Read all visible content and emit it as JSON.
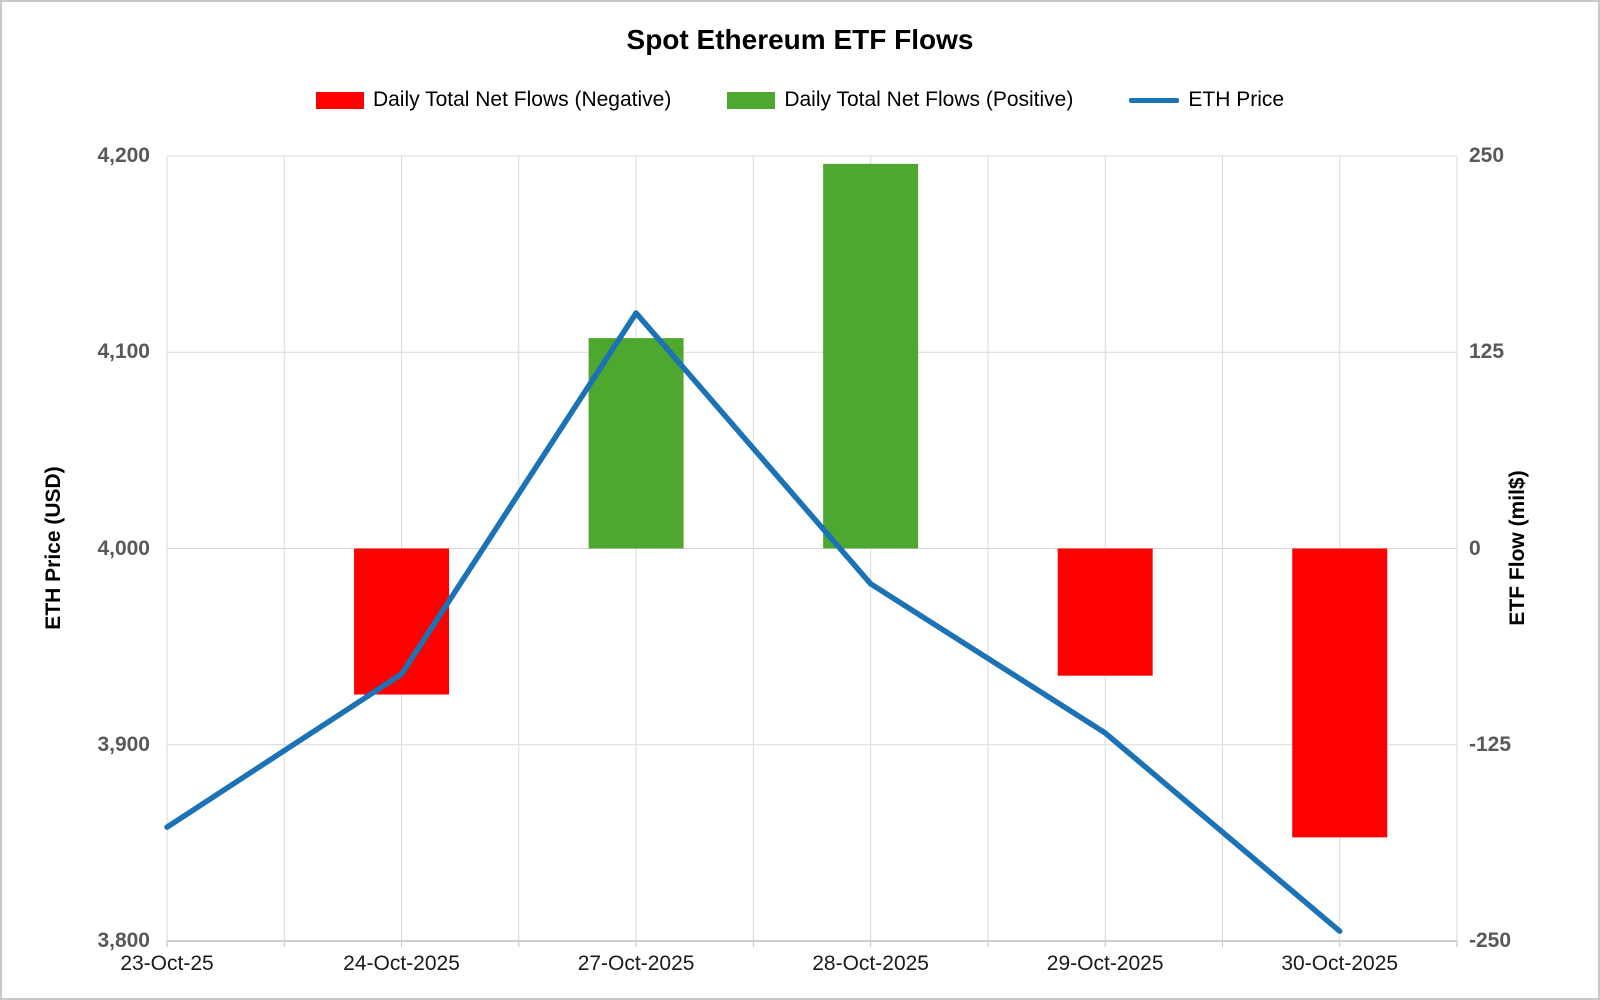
{
  "title": "Spot Ethereum ETF Flows",
  "legend": [
    {
      "label": "Daily Total Net Flows (Negative)",
      "marker": "swatch",
      "color": "#ff0000"
    },
    {
      "label": "Daily Total Net Flows (Positive)",
      "marker": "swatch",
      "color": "#4ea72e"
    },
    {
      "label": "ETH Price",
      "marker": "line",
      "color": "#1b73b6"
    }
  ],
  "chart_data": {
    "type": "combo",
    "categories": [
      "23-Oct-25",
      "24-Oct-2025",
      "27-Oct-2025",
      "28-Oct-2025",
      "29-Oct-2025",
      "30-Oct-2025"
    ],
    "series": [
      {
        "name": "Daily Total Net Flows (Negative)",
        "type": "bar",
        "axis": "right",
        "color": "#ff0000",
        "values": [
          null,
          -93,
          null,
          null,
          -81,
          -184
        ]
      },
      {
        "name": "Daily Total Net Flows (Positive)",
        "type": "bar",
        "axis": "right",
        "color": "#4ea72e",
        "values": [
          null,
          null,
          134,
          245,
          null,
          null
        ]
      },
      {
        "name": "ETH Price",
        "type": "line",
        "axis": "left",
        "color": "#1b73b6",
        "values": [
          3858,
          3936,
          4120,
          3982,
          3906,
          3805
        ]
      }
    ],
    "left_axis": {
      "title": "ETH Price (USD)",
      "min": 3800,
      "max": 4200,
      "ticks": [
        "4,200",
        "4,100",
        "4,000",
        "3,900",
        "3,800"
      ]
    },
    "right_axis": {
      "title": "ETF Flow (mil$)",
      "min": -250,
      "max": 250,
      "ticks": [
        "250",
        "125",
        "0",
        "-125",
        "-250"
      ]
    },
    "grid": true,
    "legend_position": "top",
    "gridline_color": "#d9d9d9",
    "axisline_color": "#bfbfbf"
  }
}
